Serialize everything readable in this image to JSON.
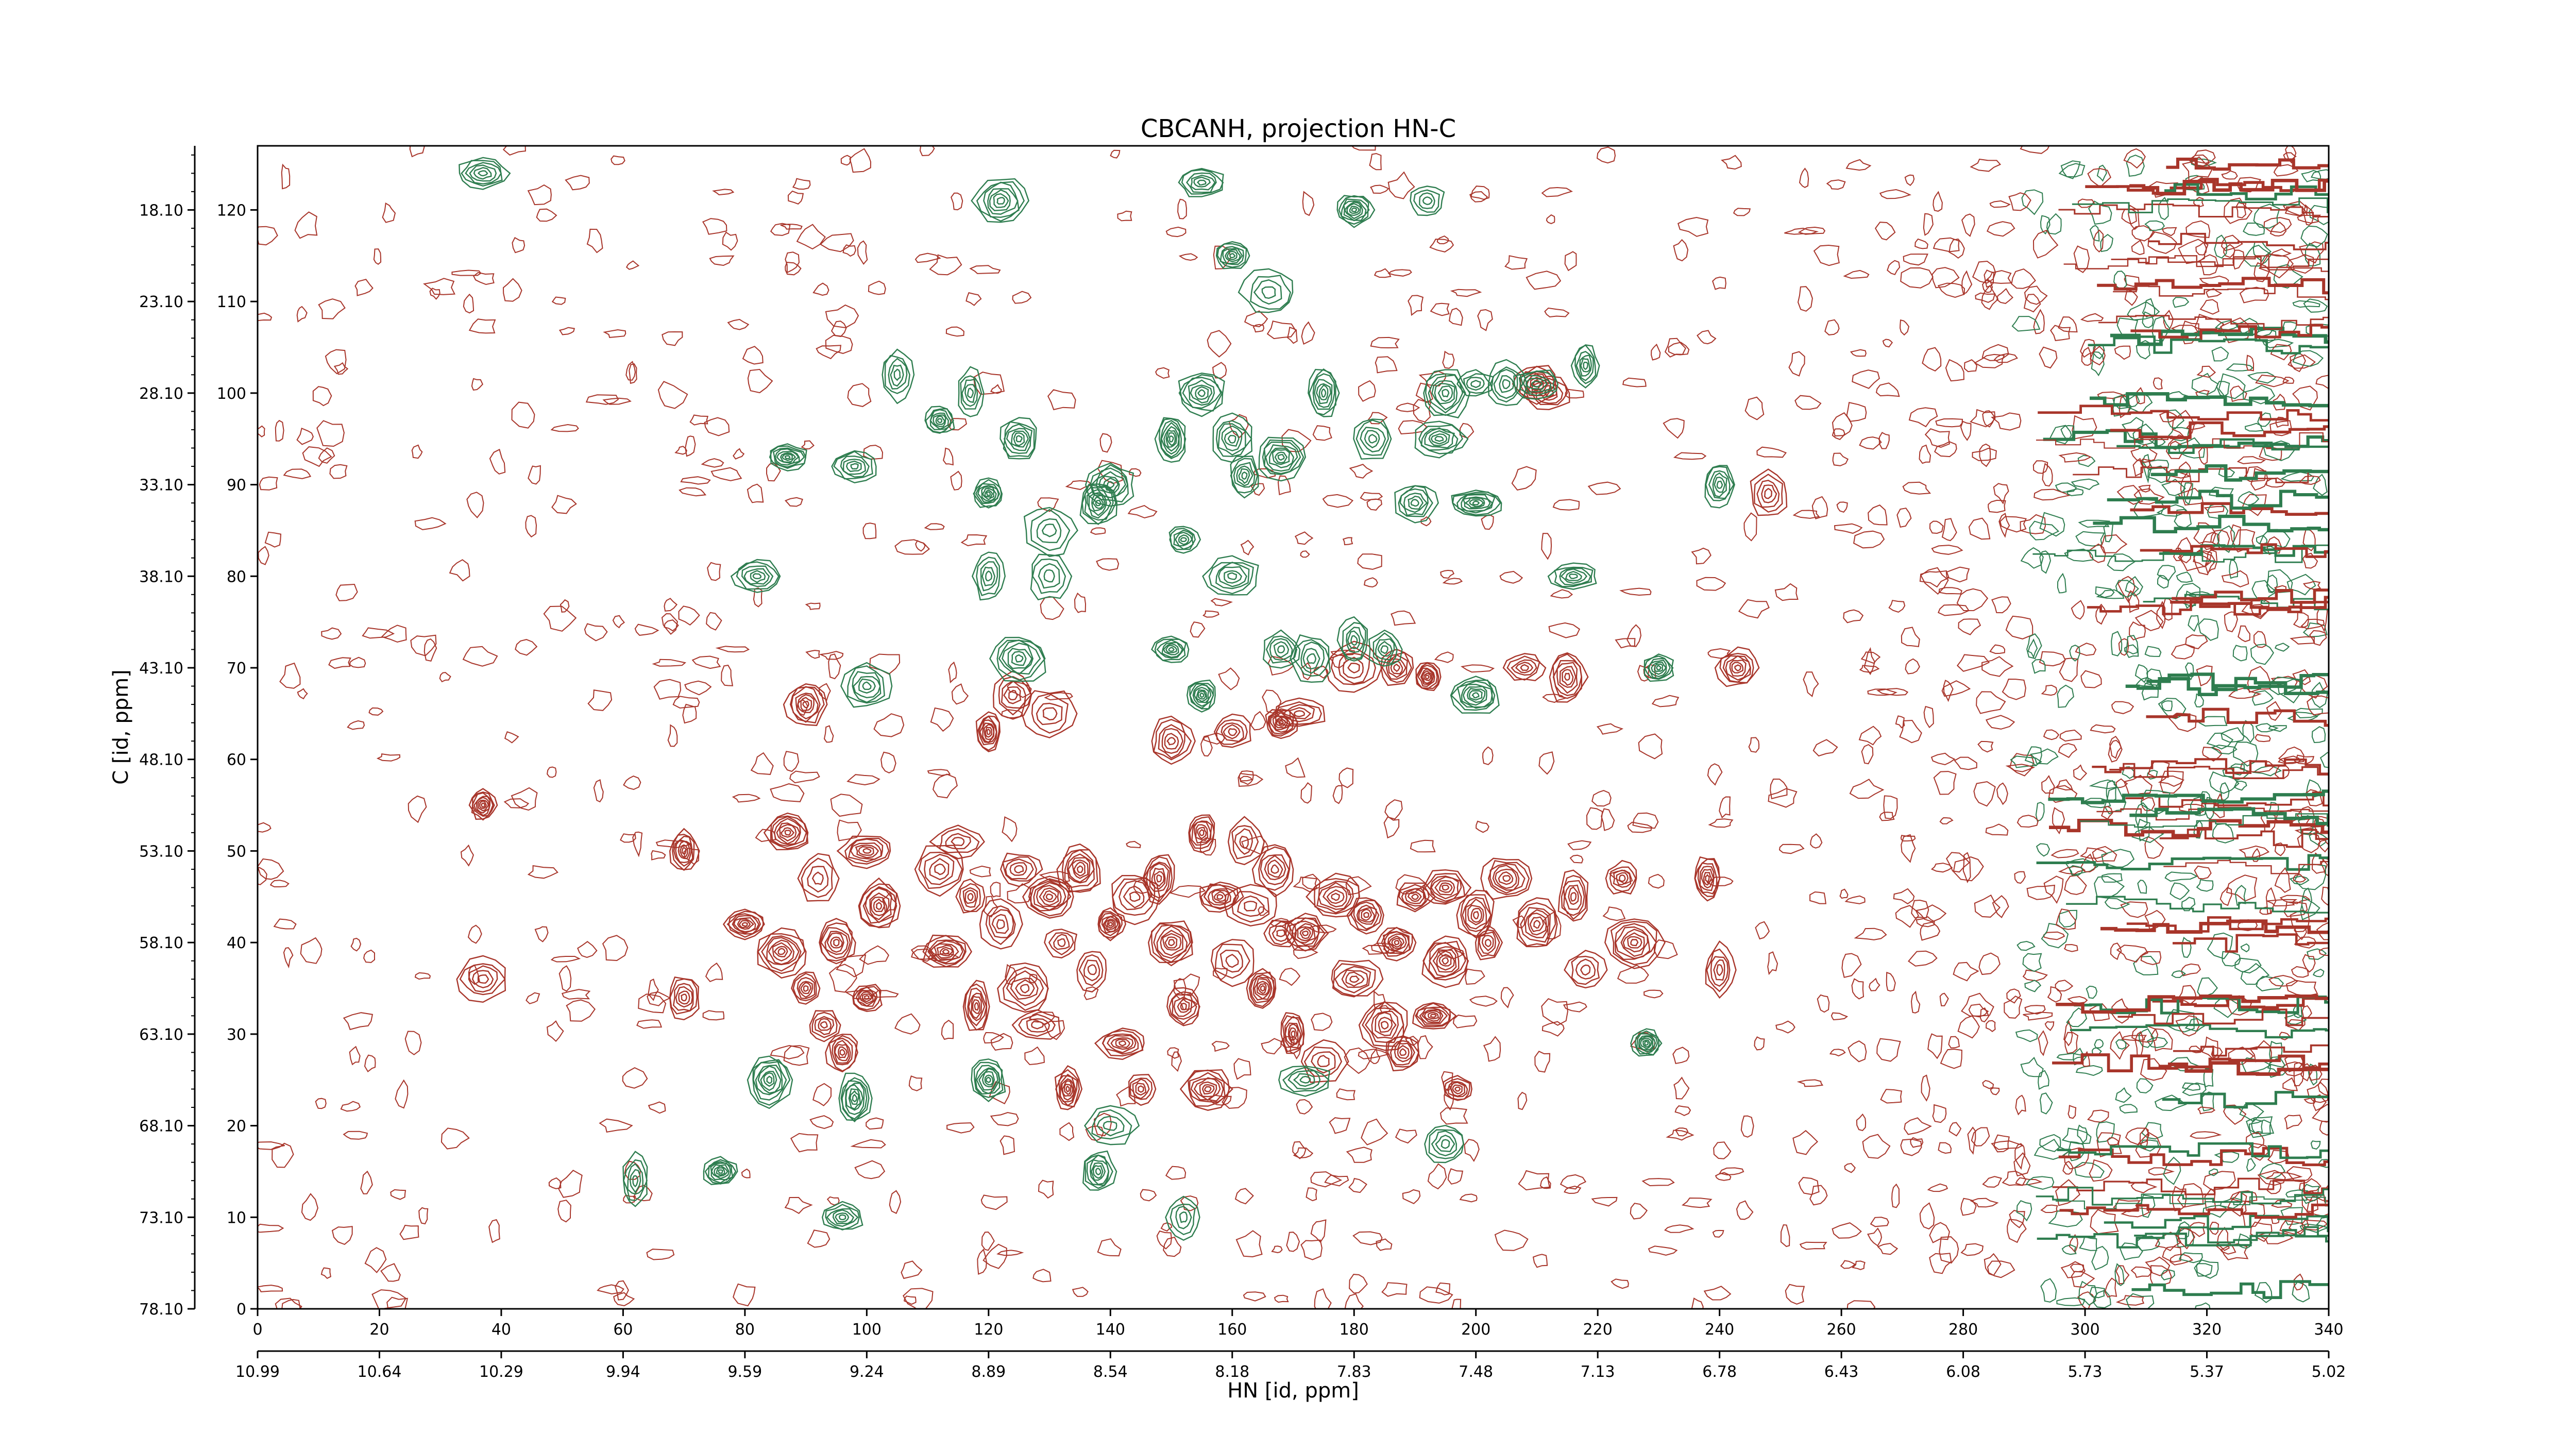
{
  "chart_data": {
    "type": "contour",
    "title": "CBCANH, projection HN-C",
    "xlabel": "HN [id, ppm]",
    "ylabel": "C [id, ppm]",
    "x_points": {
      "range": [
        0,
        340
      ],
      "ticks": [
        0,
        20,
        40,
        60,
        80,
        100,
        120,
        140,
        160,
        180,
        200,
        220,
        240,
        260,
        280,
        300,
        320,
        340
      ]
    },
    "y_points": {
      "range": [
        0,
        127
      ],
      "ticks": [
        0,
        10,
        20,
        30,
        40,
        50,
        60,
        70,
        80,
        90,
        100,
        110,
        120
      ]
    },
    "x_ppm_ticks": [
      "10.99",
      "10.64",
      "10.29",
      "9.94",
      "9.59",
      "9.24",
      "8.89",
      "8.54",
      "8.18",
      "7.83",
      "7.48",
      "7.13",
      "6.78",
      "6.43",
      "6.08",
      "5.73",
      "5.37",
      "5.02"
    ],
    "y_ppm_ticks": [
      "78.10",
      "73.10",
      "68.10",
      "63.10",
      "58.10",
      "53.10",
      "48.10",
      "43.10",
      "38.10",
      "33.10",
      "28.10",
      "23.10",
      "18.10"
    ],
    "series": [
      {
        "sign": "positive",
        "color": "#a8352a",
        "peaks": [
          [
            37,
            55
          ],
          [
            37,
            36
          ],
          [
            70,
            50
          ],
          [
            70,
            34
          ],
          [
            80,
            42
          ],
          [
            86,
            39
          ],
          [
            87,
            52
          ],
          [
            90,
            35
          ],
          [
            92,
            47
          ],
          [
            93,
            31
          ],
          [
            95,
            40
          ],
          [
            96,
            28
          ],
          [
            100,
            50
          ],
          [
            100,
            34
          ],
          [
            102,
            44
          ],
          [
            112,
            48
          ],
          [
            113,
            39
          ],
          [
            115,
            51
          ],
          [
            117,
            45
          ],
          [
            118,
            33
          ],
          [
            122,
            42
          ],
          [
            125,
            48
          ],
          [
            126,
            35
          ],
          [
            128,
            31
          ],
          [
            130,
            45
          ],
          [
            132,
            40
          ],
          [
            133,
            24
          ],
          [
            135,
            48
          ],
          [
            137,
            37
          ],
          [
            140,
            42
          ],
          [
            142,
            29
          ],
          [
            144,
            45
          ],
          [
            145,
            24
          ],
          [
            148,
            47
          ],
          [
            150,
            40
          ],
          [
            152,
            33
          ],
          [
            155,
            52
          ],
          [
            156,
            24
          ],
          [
            158,
            45
          ],
          [
            160,
            38
          ],
          [
            162,
            51
          ],
          [
            163,
            44
          ],
          [
            165,
            35
          ],
          [
            167,
            48
          ],
          [
            168,
            41
          ],
          [
            170,
            30
          ],
          [
            172,
            41
          ],
          [
            175,
            27
          ],
          [
            177,
            45
          ],
          [
            180,
            36
          ],
          [
            182,
            43
          ],
          [
            185,
            31
          ],
          [
            187,
            40
          ],
          [
            188,
            28
          ],
          [
            190,
            45
          ],
          [
            193,
            32
          ],
          [
            195,
            38
          ],
          [
            197,
            24
          ],
          [
            200,
            43
          ],
          [
            202,
            40
          ],
          [
            205,
            47
          ],
          [
            210,
            42
          ],
          [
            195,
            46
          ],
          [
            224,
            47
          ],
          [
            226,
            40
          ],
          [
            216,
            45
          ],
          [
            218,
            37
          ],
          [
            238,
            47
          ],
          [
            240,
            37
          ],
          [
            215,
            69
          ],
          [
            208,
            70
          ],
          [
            210,
            101
          ],
          [
            192,
            69
          ],
          [
            187,
            70
          ],
          [
            180,
            70
          ],
          [
            171,
            65
          ],
          [
            168,
            64
          ],
          [
            160,
            63
          ],
          [
            150,
            62
          ],
          [
            130,
            65
          ],
          [
            124,
            67
          ],
          [
            90,
            66
          ],
          [
            120,
            63
          ],
          [
            248,
            89
          ],
          [
            243,
            70
          ],
          [
            212,
            100
          ]
        ]
      },
      {
        "sign": "negative",
        "color": "#2e7d4f",
        "peaks": [
          [
            37,
            124
          ],
          [
            87,
            93
          ],
          [
            98,
            92
          ],
          [
            82,
            80
          ],
          [
            120,
            80
          ],
          [
            100,
            68
          ],
          [
            125,
            71
          ],
          [
            130,
            85
          ],
          [
            138,
            88
          ],
          [
            150,
            95
          ],
          [
            155,
            100
          ],
          [
            160,
            95
          ],
          [
            162,
            91
          ],
          [
            168,
            93
          ],
          [
            175,
            100
          ],
          [
            183,
            95
          ],
          [
            190,
            88
          ],
          [
            195,
            100
          ],
          [
            200,
            101
          ],
          [
            205,
            101
          ],
          [
            210,
            101
          ],
          [
            218,
            103
          ],
          [
            240,
            90
          ],
          [
            216,
            80
          ],
          [
            200,
            88
          ],
          [
            194,
            95
          ],
          [
            185,
            72
          ],
          [
            168,
            72
          ],
          [
            173,
            71
          ],
          [
            180,
            73
          ],
          [
            155,
            67
          ],
          [
            150,
            72
          ],
          [
            160,
            80
          ],
          [
            152,
            84
          ],
          [
            140,
            90
          ],
          [
            130,
            80
          ],
          [
            120,
            89
          ],
          [
            125,
            95
          ],
          [
            112,
            97
          ],
          [
            117,
            100
          ],
          [
            105,
            102
          ],
          [
            122,
            121
          ],
          [
            160,
            115
          ],
          [
            166,
            111
          ],
          [
            180,
            120
          ],
          [
            192,
            121
          ],
          [
            155,
            123
          ],
          [
            230,
            70
          ],
          [
            200,
            67
          ],
          [
            120,
            25
          ],
          [
            140,
            20
          ],
          [
            138,
            15
          ],
          [
            172,
            25
          ],
          [
            195,
            18
          ],
          [
            76,
            15
          ],
          [
            96,
            10
          ],
          [
            84,
            25
          ],
          [
            98,
            23
          ],
          [
            152,
            10
          ],
          [
            228,
            29
          ],
          [
            62,
            14
          ]
        ]
      }
    ]
  }
}
